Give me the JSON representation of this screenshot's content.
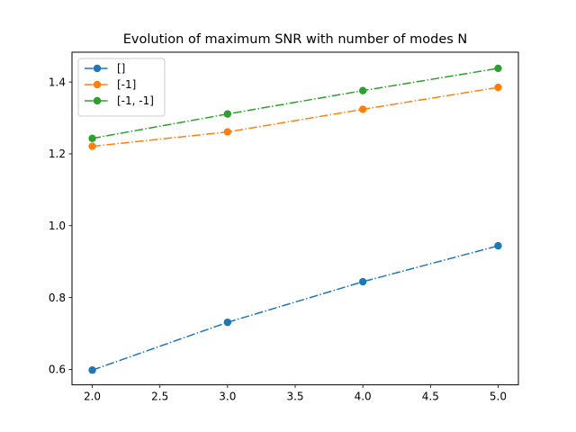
{
  "chart_data": {
    "type": "line",
    "title": "Evolution of maximum SNR with number of modes N",
    "xlabel": "",
    "ylabel": "",
    "xlim": [
      1.85,
      5.15
    ],
    "ylim": [
      0.557,
      1.483
    ],
    "xticks": [
      2.0,
      2.5,
      3.0,
      3.5,
      4.0,
      4.5,
      5.0
    ],
    "xtick_labels": [
      "2.0",
      "2.5",
      "3.0",
      "3.5",
      "4.0",
      "4.5",
      "5.0"
    ],
    "yticks": [
      0.6,
      0.8,
      1.0,
      1.2,
      1.4
    ],
    "ytick_labels": [
      "0.6",
      "0.8",
      "1.0",
      "1.2",
      "1.4"
    ],
    "grid": false,
    "legend_position": "upper-left",
    "x": [
      2,
      3,
      4,
      5
    ],
    "series": [
      {
        "name": "[]",
        "values": [
          0.598,
          0.731,
          0.844,
          0.944
        ],
        "color": "#1f77b4",
        "linestyle": "dashdot",
        "marker": "circle"
      },
      {
        "name": "[-1]",
        "values": [
          1.221,
          1.261,
          1.324,
          1.385
        ],
        "color": "#ff7f0e",
        "linestyle": "dashdot",
        "marker": "circle"
      },
      {
        "name": "[-1, -1]",
        "values": [
          1.243,
          1.311,
          1.376,
          1.438
        ],
        "color": "#2ca02c",
        "linestyle": "dashdot",
        "marker": "circle"
      }
    ]
  }
}
